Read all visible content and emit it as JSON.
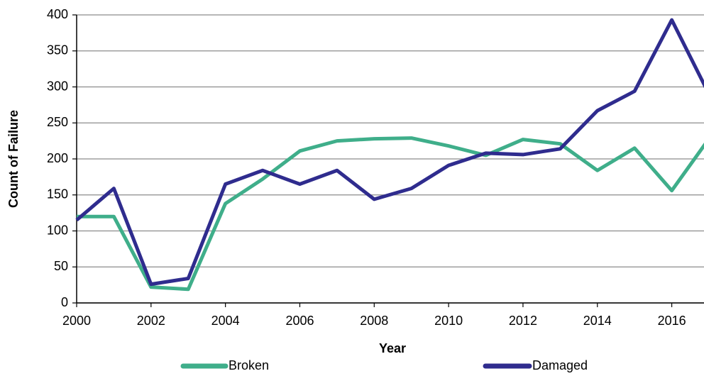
{
  "chart_data": {
    "type": "line",
    "x_label": "Year",
    "y_label": "Count of Failure",
    "x": [
      2000,
      2001,
      2002,
      2003,
      2004,
      2005,
      2006,
      2007,
      2008,
      2009,
      2010,
      2011,
      2012,
      2013,
      2014,
      2015,
      2016,
      2017
    ],
    "series": [
      {
        "name": "Broken",
        "color": "#3fae8a",
        "values": [
          120,
          120,
          22,
          19,
          138,
          172,
          211,
          225,
          228,
          229,
          218,
          205,
          227,
          221,
          184,
          215,
          156,
          228
        ]
      },
      {
        "name": "Damaged",
        "color": "#2f2c8e",
        "values": [
          115,
          159,
          26,
          34,
          165,
          184,
          165,
          184,
          144,
          159,
          191,
          208,
          206,
          214,
          267,
          294,
          393,
          290
        ]
      }
    ],
    "xlim": [
      2000,
      2017
    ],
    "xticks": [
      2000,
      2002,
      2004,
      2006,
      2008,
      2010,
      2012,
      2014,
      2016
    ],
    "ylim": [
      0,
      400
    ],
    "yticks": [
      0,
      50,
      100,
      150,
      200,
      250,
      300,
      350,
      400
    ],
    "grid": true,
    "legend": "bottom"
  }
}
